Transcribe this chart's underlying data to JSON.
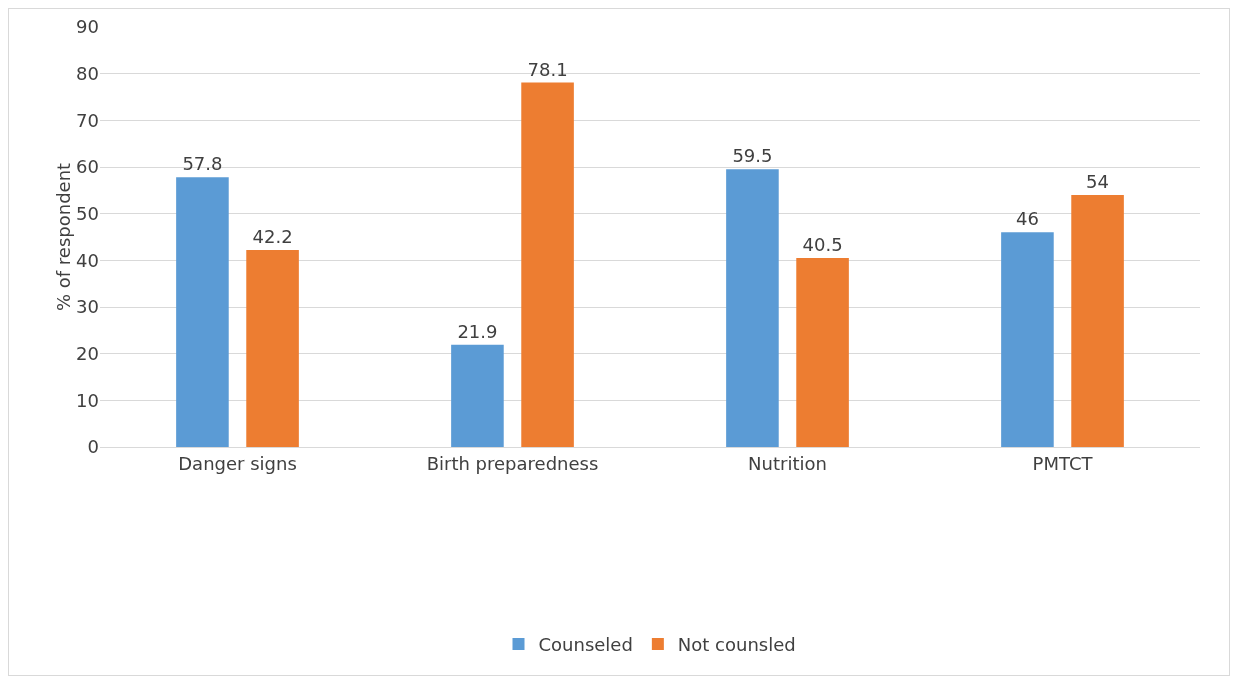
{
  "chart_data": {
    "type": "bar",
    "ylabel": "% of respondent",
    "categories": [
      "Danger signs",
      "Birth preparedness",
      "Nutrition",
      "PMTCT"
    ],
    "series": [
      {
        "name": "Counseled",
        "color": "#5b9bd5",
        "values": [
          57.8,
          21.9,
          59.5,
          46
        ]
      },
      {
        "name": "Not counsled",
        "color": "#ed7d31",
        "values": [
          42.2,
          78.1,
          40.5,
          54
        ]
      }
    ],
    "ylim": [
      0,
      90
    ],
    "yticks": [
      0,
      10,
      20,
      30,
      40,
      50,
      60,
      70,
      80,
      90
    ],
    "grid": "y",
    "legend": "bottom",
    "data_labels": true
  }
}
